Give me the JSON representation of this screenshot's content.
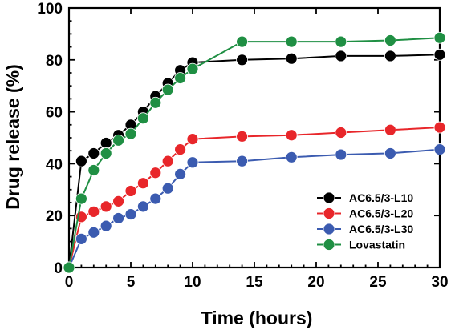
{
  "chart_data": {
    "type": "line",
    "title": "",
    "xlabel": "Time (hours)",
    "ylabel": "Drug release (%)",
    "xlim": [
      0,
      30
    ],
    "ylim": [
      0,
      100
    ],
    "xticks": [
      0,
      5,
      10,
      15,
      20,
      25,
      30
    ],
    "yticks": [
      0,
      20,
      40,
      60,
      80,
      100
    ],
    "legend_position": "lower-right",
    "grid": false,
    "series": [
      {
        "name": "AC6.5/3-L10",
        "color": "#000000",
        "x": [
          0,
          1,
          2,
          3,
          4,
          5,
          6,
          7,
          8,
          9,
          10,
          14,
          18,
          22,
          26,
          30
        ],
        "y": [
          0,
          41,
          44,
          48,
          51,
          55,
          60,
          66,
          71,
          76,
          79,
          80,
          80.5,
          81.5,
          81.5,
          82
        ]
      },
      {
        "name": "AC6.5/3-L20",
        "color": "#e8262a",
        "x": [
          0,
          1,
          2,
          3,
          4,
          5,
          6,
          7,
          8,
          9,
          10,
          14,
          18,
          22,
          26,
          30
        ],
        "y": [
          0,
          19.5,
          21.5,
          23.5,
          25.5,
          29.5,
          32.5,
          36.5,
          41,
          45.5,
          49.5,
          50.5,
          51,
          52,
          53,
          54
        ]
      },
      {
        "name": "AC6.5/3-L30",
        "color": "#3b5bb0",
        "x": [
          0,
          1,
          2,
          3,
          4,
          5,
          6,
          7,
          8,
          9,
          10,
          14,
          18,
          22,
          26,
          30
        ],
        "y": [
          0,
          11,
          13.5,
          16,
          19,
          20.5,
          23.5,
          26.5,
          30.5,
          36,
          40.5,
          41,
          42.5,
          43.5,
          44,
          45.5
        ]
      },
      {
        "name": "Lovastatin",
        "color": "#1f8f43",
        "x": [
          0,
          1,
          2,
          3,
          4,
          5,
          6,
          7,
          8,
          9,
          10,
          14,
          18,
          22,
          26,
          30
        ],
        "y": [
          0,
          26.5,
          37.5,
          44,
          49,
          51.5,
          57.5,
          63.5,
          68.5,
          73,
          76.5,
          87,
          87,
          87,
          87.5,
          88.5
        ]
      }
    ]
  }
}
